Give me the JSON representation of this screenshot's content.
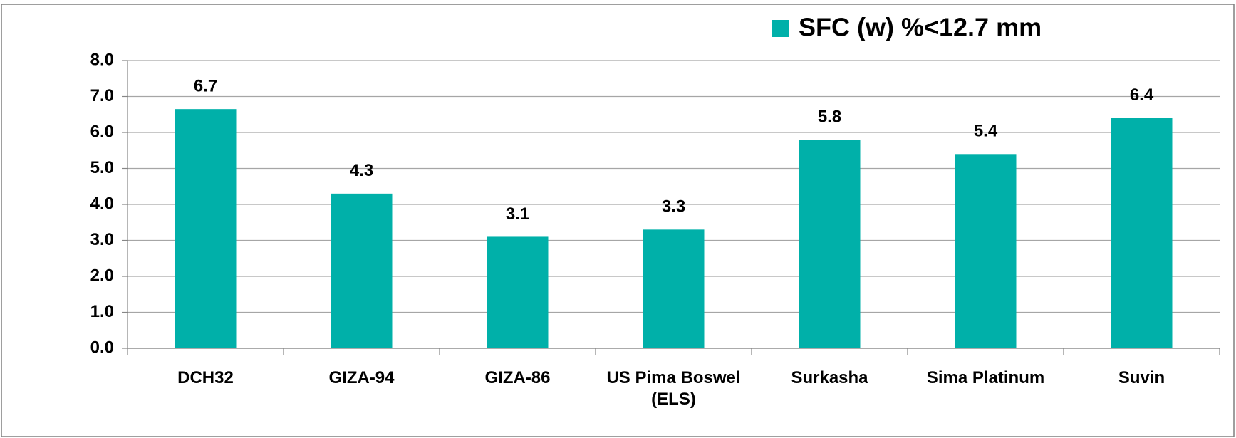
{
  "chart_data": {
    "type": "bar",
    "categories": [
      "DCH32",
      "GIZA-94",
      "GIZA-86",
      "US Pima Boswel (ELS)",
      "Surkasha",
      "Sima Platinum",
      "Suvin"
    ],
    "series": [
      {
        "name": "SFC (w) %<12.7 mm",
        "color": "#00b0a9",
        "values": [
          6.65,
          4.3,
          3.1,
          3.3,
          5.8,
          5.4,
          6.4
        ],
        "value_labels": [
          "6.7",
          "4.3",
          "3.1",
          "3.3",
          "5.8",
          "5.4",
          "6.4"
        ]
      }
    ],
    "ylim": [
      0,
      8
    ],
    "yticks": [
      {
        "value": 0,
        "label": "0.0"
      },
      {
        "value": 1,
        "label": "1.0"
      },
      {
        "value": 2,
        "label": "2.0"
      },
      {
        "value": 3,
        "label": "3.0"
      },
      {
        "value": 4,
        "label": "4.0"
      },
      {
        "value": 5,
        "label": "5.0"
      },
      {
        "value": 6,
        "label": "6.0"
      },
      {
        "value": 7,
        "label": "7.0"
      },
      {
        "value": 8,
        "label": "8.0"
      }
    ],
    "grid": true,
    "legend": "top-right"
  }
}
